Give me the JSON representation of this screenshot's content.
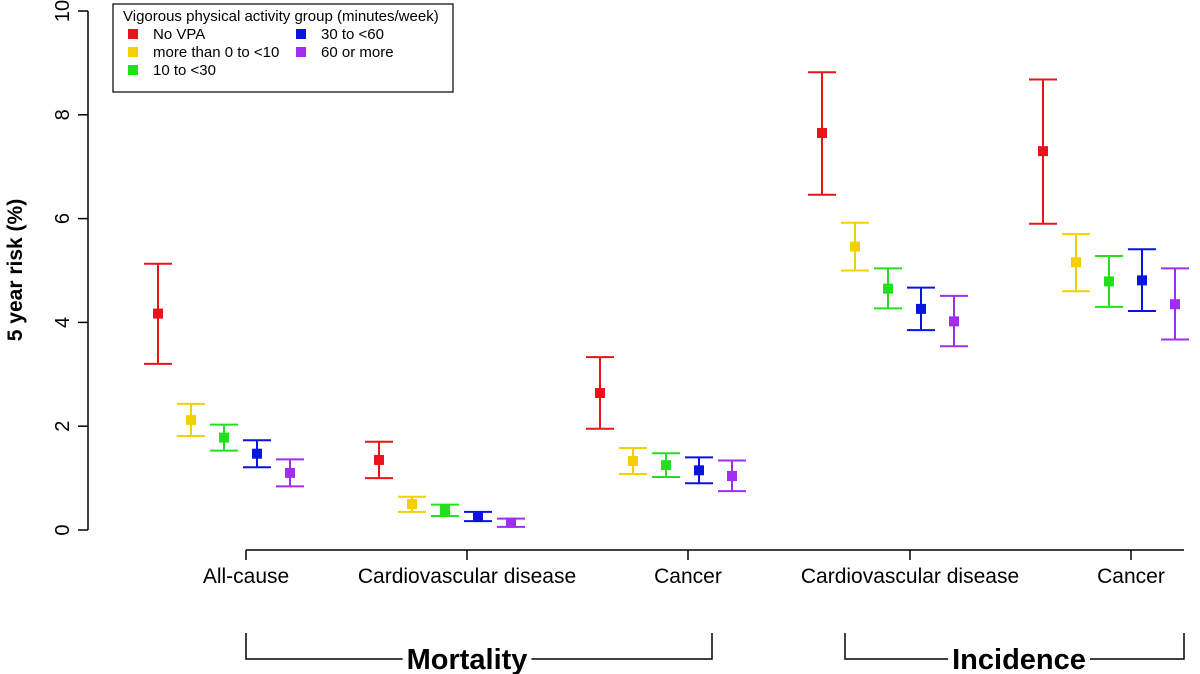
{
  "chart_data": {
    "type": "scatter",
    "subtype": "point-with-error-bars",
    "title": "",
    "xlabel": "",
    "ylabel": "5 year risk (%)",
    "ylim": [
      0,
      10
    ],
    "yticks": [
      0,
      2,
      4,
      6,
      8,
      10
    ],
    "grid": false,
    "legend": {
      "title": "Vigorous physical activity group (minutes/week)",
      "position": "top-left",
      "entries": [
        {
          "name": "No VPA",
          "color": "#E8131B"
        },
        {
          "name": "more than 0 to <10",
          "color": "#F5D000"
        },
        {
          "name": "10 to <30",
          "color": "#22E01E"
        },
        {
          "name": "30 to <60",
          "color": "#0A14E0"
        },
        {
          "name": "60 or more",
          "color": "#A12DF0"
        }
      ]
    },
    "categories": [
      "All-cause",
      "Cardiovascular disease",
      "Cancer",
      "Cardiovascular disease",
      "Cancer"
    ],
    "groups": [
      {
        "label": "Mortality",
        "categories": [
          0,
          1,
          2
        ]
      },
      {
        "label": "Incidence",
        "categories": [
          3,
          4
        ]
      }
    ],
    "series": [
      {
        "name": "No VPA",
        "values": [
          4.17,
          1.35,
          2.64,
          7.65,
          7.3
        ],
        "lower": [
          3.2,
          1.0,
          1.95,
          6.46,
          5.9
        ],
        "upper": [
          5.13,
          1.7,
          3.33,
          8.82,
          8.68
        ]
      },
      {
        "name": "more than 0 to <10",
        "values": [
          2.12,
          0.5,
          1.33,
          5.46,
          5.16
        ],
        "lower": [
          1.81,
          0.35,
          1.08,
          5.0,
          4.6
        ],
        "upper": [
          2.43,
          0.64,
          1.58,
          5.92,
          5.7
        ]
      },
      {
        "name": "10 to <30",
        "values": [
          1.78,
          0.38,
          1.25,
          4.65,
          4.79
        ],
        "lower": [
          1.53,
          0.27,
          1.02,
          4.27,
          4.3
        ],
        "upper": [
          2.03,
          0.49,
          1.48,
          5.04,
          5.28
        ]
      },
      {
        "name": "30 to <60",
        "values": [
          1.47,
          0.26,
          1.15,
          4.26,
          4.81
        ],
        "lower": [
          1.21,
          0.17,
          0.9,
          3.85,
          4.22
        ],
        "upper": [
          1.73,
          0.35,
          1.4,
          4.67,
          5.41
        ]
      },
      {
        "name": "60 or more",
        "values": [
          1.1,
          0.14,
          1.04,
          4.02,
          4.35
        ],
        "lower": [
          0.84,
          0.06,
          0.75,
          3.54,
          3.67
        ],
        "upper": [
          1.36,
          0.22,
          1.34,
          4.51,
          5.04
        ]
      }
    ]
  }
}
